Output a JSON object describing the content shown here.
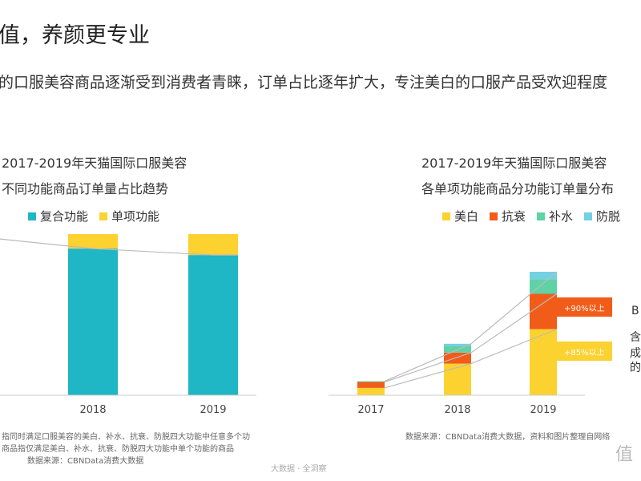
{
  "headline": "值，养颜更专业",
  "subline": "的口服美容商品逐渐受到消费者青睐，订单占比逐年扩大，专注美白的口服产品受欢迎程度",
  "left_chart": {
    "title_line1": "2017-2019年天猫国际口服美容",
    "title_line2": "不同功能商品订单量占比趋势",
    "note_line1": "指同时满足口服美容的美白、补水、抗衰、防脱四大功能中任意多个功",
    "note_line2": "商品指仅满足美白、补水、抗衰、防脱四大功能中单个功能的商品",
    "source": "数据来源：CBNData消费大数据"
  },
  "right_chart": {
    "title_line1": "2017-2019年天猫国际口服美容",
    "title_line2": "各单项功能商品分功能订单量分布",
    "source": "数据来源：CBNData消费大数据，资料和图片整理自网络",
    "tag_top": "+90%以上",
    "tag_bottom": "+85%以上"
  },
  "side_text": [
    "B",
    "含",
    "成",
    "的"
  ],
  "footer_watermark": "大数据 · 全洞察",
  "corner_watermark": "值",
  "colors": {
    "teal": "#1fb6c6",
    "yellow": "#fcd230",
    "orange": "#f25c19",
    "green": "#5fd2a6",
    "lightblue": "#74d0e3",
    "line": "#bbbbbb"
  },
  "chart_data": [
    {
      "type": "bar",
      "stacked": true,
      "categories": [
        "2018",
        "2019"
      ],
      "series": [
        {
          "name": "复合功能",
          "values": [
            91,
            87
          ]
        },
        {
          "name": "单项功能",
          "values": [
            9,
            13
          ]
        }
      ],
      "ylim": [
        0,
        100
      ],
      "grid": false,
      "legend_position": "top"
    },
    {
      "type": "bar",
      "stacked": true,
      "categories": [
        "2017",
        "2018",
        "2019"
      ],
      "series": [
        {
          "name": "美白",
          "values": [
            10,
            43,
            90
          ]
        },
        {
          "name": "抗衰",
          "values": [
            8,
            15,
            48
          ]
        },
        {
          "name": "补水",
          "values": [
            1,
            9,
            20
          ]
        },
        {
          "name": "防脱",
          "values": [
            0,
            3,
            10
          ]
        }
      ],
      "ylim": [
        0,
        180
      ],
      "grid": false,
      "legend_position": "top",
      "annotations": [
        "+90%以上",
        "+85%以上"
      ]
    }
  ]
}
